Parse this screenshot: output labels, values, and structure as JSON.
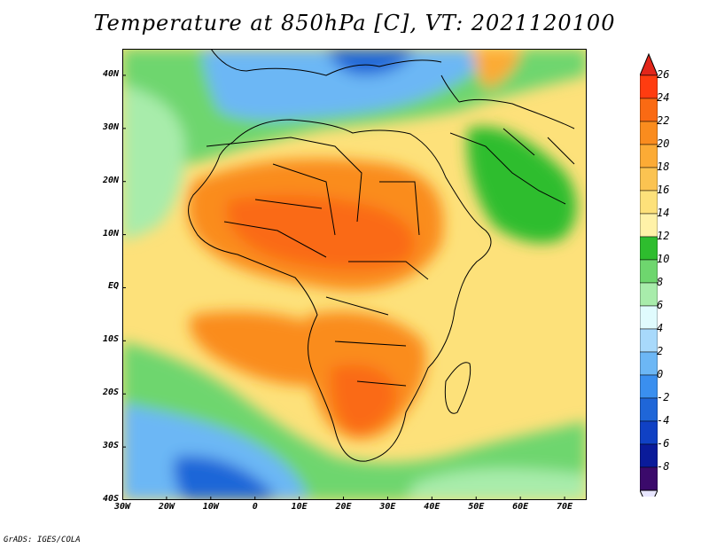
{
  "title": "Temperature at 850hPa [C], VT: 2021120100",
  "credit": "GrADS: IGES/COLA",
  "map": {
    "lon_range": [
      -30,
      75
    ],
    "lat_range": [
      -40,
      45
    ],
    "lat_ticks": [
      {
        "value": 40,
        "label": "40N"
      },
      {
        "value": 30,
        "label": "30N"
      },
      {
        "value": 20,
        "label": "20N"
      },
      {
        "value": 10,
        "label": "10N"
      },
      {
        "value": 0,
        "label": "EQ"
      },
      {
        "value": -10,
        "label": "10S"
      },
      {
        "value": -20,
        "label": "20S"
      },
      {
        "value": -30,
        "label": "30S"
      },
      {
        "value": -40,
        "label": "40S"
      }
    ],
    "lon_ticks": [
      {
        "value": -30,
        "label": "30W"
      },
      {
        "value": -20,
        "label": "20W"
      },
      {
        "value": -10,
        "label": "10W"
      },
      {
        "value": 0,
        "label": "0"
      },
      {
        "value": 10,
        "label": "10E"
      },
      {
        "value": 20,
        "label": "20E"
      },
      {
        "value": 30,
        "label": "30E"
      },
      {
        "value": 40,
        "label": "40E"
      },
      {
        "value": 50,
        "label": "50E"
      },
      {
        "value": 60,
        "label": "60E"
      },
      {
        "value": 70,
        "label": "70E"
      }
    ]
  },
  "colorbar": {
    "labels": [
      "26",
      "24",
      "22",
      "20",
      "18",
      "16",
      "14",
      "12",
      "10",
      "8",
      "6",
      "4",
      "2",
      "0",
      "-2",
      "-4",
      "-6",
      "-8"
    ],
    "colors": [
      "#ff3c10",
      "#fa6a13",
      "#fa8c1e",
      "#fcab35",
      "#fbc351",
      "#fde17a",
      "#fff2a8",
      "#2ebd2e",
      "#6ed66e",
      "#a8ecab",
      "#e0fbfd",
      "#a8d9fb",
      "#6cb7f5",
      "#3a8fef",
      "#1f66d8",
      "#1041c4",
      "#0a1b9a",
      "#3b0a6b"
    ],
    "over_color": "#e2261a",
    "under_color": "#e8e6ff"
  }
}
